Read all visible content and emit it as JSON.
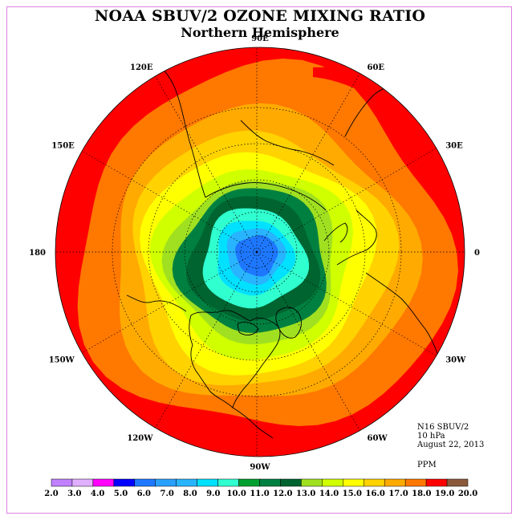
{
  "title": "NOAA SBUV/2 OZONE MIXING RATIO",
  "subtitle": "Northern Hemisphere",
  "info": {
    "instrument": "N16 SBUV/2",
    "level": "10 hPa",
    "date": "August 22, 2013",
    "units": "PPM"
  },
  "longitude_labels": [
    {
      "lon_deg": 90,
      "label": "90E"
    },
    {
      "lon_deg": 120,
      "label": "120E"
    },
    {
      "lon_deg": 60,
      "label": "60E"
    },
    {
      "lon_deg": 150,
      "label": "150E"
    },
    {
      "lon_deg": 30,
      "label": "30E"
    },
    {
      "lon_deg": 180,
      "label": "180"
    },
    {
      "lon_deg": 0,
      "label": "0"
    },
    {
      "lon_deg": -150,
      "label": "150W"
    },
    {
      "lon_deg": -30,
      "label": "30W"
    },
    {
      "lon_deg": -120,
      "label": "120W"
    },
    {
      "lon_deg": -60,
      "label": "60W"
    },
    {
      "lon_deg": -90,
      "label": "90W"
    }
  ],
  "colorbar": {
    "ticks": [
      "2.0",
      "3.0",
      "4.0",
      "5.0",
      "6.0",
      "7.0",
      "8.0",
      "9.0",
      "10.0",
      "11.0",
      "12.0",
      "13.0",
      "14.0",
      "15.0",
      "16.0",
      "17.0",
      "18.0",
      "19.0",
      "20.0"
    ],
    "colors": [
      "#c080ff",
      "#e0b0ff",
      "#ff00ff",
      "#0000ff",
      "#1e78ff",
      "#28a0ff",
      "#28b4ff",
      "#00e0ff",
      "#30ffd0",
      "#00a030",
      "#008040",
      "#006430",
      "#a0e020",
      "#d0ff00",
      "#ffff00",
      "#ffd200",
      "#ffaa00",
      "#ff7800",
      "#ff0000",
      "#8b5a3c"
    ]
  },
  "ozone_bands": [
    {
      "value_ppm": 18.0,
      "color": "#ff7800"
    },
    {
      "value_ppm": 17.0,
      "color": "#ffaa00"
    },
    {
      "value_ppm": 16.0,
      "color": "#ffd200"
    },
    {
      "value_ppm": 15.0,
      "color": "#ffff00"
    },
    {
      "value_ppm": 14.0,
      "color": "#d0ff00"
    },
    {
      "value_ppm": 13.0,
      "color": "#a0e020"
    },
    {
      "value_ppm": 12.0,
      "color": "#008040"
    },
    {
      "value_ppm": 11.0,
      "color": "#006430"
    },
    {
      "value_ppm": 10.0,
      "color": "#30ffd0"
    },
    {
      "value_ppm": 9.0,
      "color": "#00e0ff"
    },
    {
      "value_ppm": 8.0,
      "color": "#28b4ff"
    },
    {
      "value_ppm": 7.0,
      "color": "#1e78ff"
    }
  ],
  "ozone_max_color": "#ff0000",
  "map": {
    "projection": "polar stereographic",
    "hemisphere": "north",
    "graticule": "dotted"
  }
}
